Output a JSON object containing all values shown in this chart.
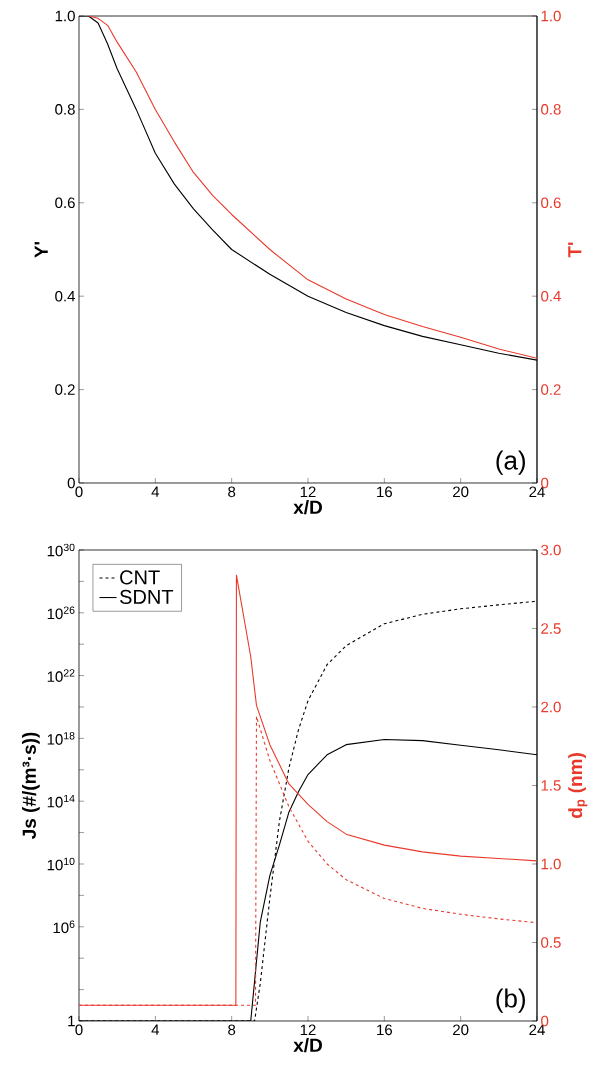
{
  "chart_data": [
    {
      "type": "line",
      "xlabel": "x/D",
      "ylabel": "Y'",
      "y2label": "T'",
      "annotations": [
        "(a)"
      ],
      "xlim": [
        0,
        24
      ],
      "xticks": [
        0,
        4,
        8,
        12,
        16,
        20,
        24
      ],
      "ylim": [
        0,
        1
      ],
      "yticks": [
        0,
        0.2,
        0.4,
        0.6,
        0.8,
        {
          "value": 1,
          "label": "1.0"
        }
      ],
      "y2lim": [
        0,
        1
      ],
      "y2ticks": [
        0,
        0.2,
        0.4,
        0.6,
        0.8,
        {
          "value": 1,
          "label": "1.0"
        }
      ],
      "series": [
        {
          "color": "#000000",
          "x": [
            0,
            0.5,
            1,
            1.5,
            2,
            3,
            4,
            5,
            6,
            7,
            8,
            10,
            12,
            14,
            16,
            18,
            20,
            22,
            24
          ],
          "values": [
            1,
            1,
            0.985,
            0.94,
            0.887,
            0.8,
            0.706,
            0.64,
            0.587,
            0.542,
            0.5,
            0.447,
            0.4,
            0.365,
            0.337,
            0.314,
            0.296,
            0.278,
            0.263
          ]
        },
        {
          "color": "#e8392b",
          "axis": "y2",
          "x": [
            0.5,
            1,
            1.5,
            2,
            3,
            4,
            5,
            6,
            7,
            8,
            10,
            12,
            14,
            16,
            18,
            20,
            22,
            24
          ],
          "values": [
            1,
            0.995,
            0.98,
            0.944,
            0.88,
            0.8,
            0.73,
            0.665,
            0.616,
            0.575,
            0.5,
            0.435,
            0.394,
            0.361,
            0.335,
            0.312,
            0.287,
            0.267
          ]
        }
      ]
    },
    {
      "type": "line",
      "xlabel": "x/D",
      "ylabel": "Js (#/(m³·s))",
      "y2label": "d$_{p}$ (nm)",
      "annotations": [
        "(b)"
      ],
      "log": "y",
      "legend": "top left",
      "xlim": [
        0,
        24
      ],
      "xticks": [
        0,
        4,
        8,
        12,
        16,
        20,
        24
      ],
      "ylim": [
        1,
        1e+30
      ],
      "yticks": [
        {
          "value": 1,
          "label": "1"
        },
        {
          "value": 100.0,
          "label": null
        },
        {
          "value": 10000.0,
          "label": null
        },
        {
          "value": 1000000.0,
          "label": "10$^{6}$"
        },
        {
          "value": 100000000.0,
          "label": null
        },
        {
          "value": 10000000000.0,
          "label": "10$^{10}$"
        },
        {
          "value": 1000000000000.0,
          "label": null
        },
        {
          "value": 100000000000000.0,
          "label": "10$^{14}$"
        },
        {
          "value": 1e+16,
          "label": null
        },
        {
          "value": 1e+18,
          "label": "10$^{18}$"
        },
        {
          "value": 1e+20,
          "label": null
        },
        {
          "value": 1e+22,
          "label": "10$^{22}$"
        },
        {
          "value": 1e+24,
          "label": null
        },
        {
          "value": 1e+26,
          "label": "10$^{26}$"
        },
        {
          "value": 1e+28,
          "label": null
        },
        {
          "value": 1e+30,
          "label": "10$^{30}$"
        }
      ],
      "y2lim": [
        0,
        3
      ],
      "y2ticks": [
        0,
        0.5,
        {
          "value": 1,
          "label": "1.0"
        },
        1.5,
        {
          "value": 2,
          "label": "2.0"
        },
        2.5,
        {
          "value": 3,
          "label": "3.0"
        }
      ],
      "series": [
        {
          "name": "CNT",
          "color": "#000000",
          "line_style": "dashed",
          "x": [
            0,
            9.2,
            9.5,
            10,
            10.5,
            11,
            11.5,
            12,
            13,
            14,
            16,
            18,
            20,
            22,
            24
          ],
          "values": [
            1,
            1,
            250,
            63000000.0,
            5000000000000.0,
            1.3e+16,
            3.5e+18,
            2.5e+20,
            5e+22,
            8e+23,
            2e+25,
            8e+25,
            1.8e+26,
            3.2e+26,
            5.5e+26
          ]
        },
        {
          "name": "SDNT",
          "color": "#000000",
          "line_style": "solid",
          "x": [
            0,
            9.0,
            9.5,
            10,
            10.5,
            11,
            11.5,
            12,
            13,
            14,
            16,
            18,
            20,
            22,
            24
          ],
          "values": [
            1,
            1,
            2000000.0,
            1800000000.0,
            160000000000.0,
            20000000000000.0,
            400000000000000.0,
            5000000000000000.0,
            9e+16,
            4e+17,
            8.5e+17,
            7.2e+17,
            3.7e+17,
            1.9e+17,
            9e+16
          ]
        },
        {
          "color": "#e8392b",
          "axis": "y2",
          "line_style": "dashed",
          "x": [
            0,
            9.25,
            9.3,
            10,
            11,
            12,
            13,
            14,
            16,
            18,
            20,
            22,
            24
          ],
          "values": [
            0.1,
            0.1,
            1.94,
            1.66,
            1.365,
            1.145,
            1.0,
            0.9,
            0.78,
            0.717,
            0.68,
            0.65,
            0.626
          ]
        },
        {
          "color": "#e8392b",
          "axis": "y2",
          "line_style": "solid",
          "x": [
            0,
            8.22,
            8.25,
            9,
            9.3,
            10,
            11,
            12,
            13,
            14,
            16,
            18,
            20,
            22,
            24
          ],
          "values": [
            0.1,
            0.1,
            2.84,
            2.32,
            2.01,
            1.76,
            1.51,
            1.38,
            1.27,
            1.19,
            1.12,
            1.077,
            1.05,
            1.035,
            1.02
          ]
        }
      ]
    }
  ]
}
